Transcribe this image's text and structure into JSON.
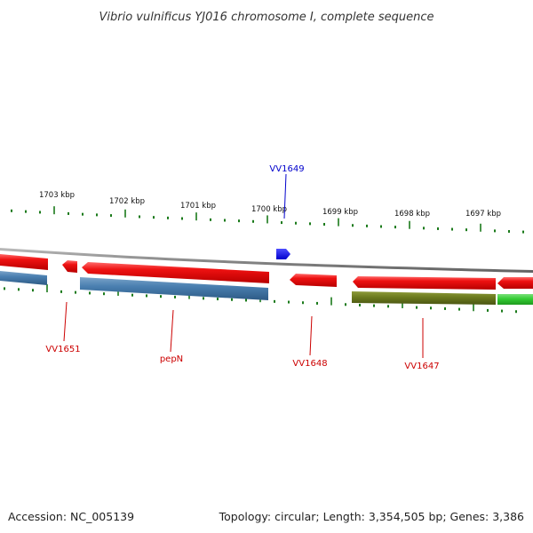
{
  "header": {
    "title": "Vibrio vulnificus YJ016 chromosome I, complete sequence"
  },
  "footer": {
    "accession": "Accession: NC_005139",
    "summary": "Topology: circular; Length: 3,354,505 bp; Genes: 3,386"
  },
  "ruler": {
    "labels": [
      "1703 kbp",
      "1702 kbp",
      "1701 kbp",
      "1700 kbp",
      "1699 kbp",
      "1698 kbp",
      "1697 kbp"
    ]
  },
  "colors": {
    "gene_red": "#ee1111",
    "cds_blue": "#4a7fb0",
    "cds_olive": "#6b7a1e",
    "cds_green": "#33cc33",
    "highlight_blue": "#0000ee",
    "tick_green": "#1a7a1a",
    "backbone": "#8a8a8a",
    "label_red": "#cc0000",
    "label_blue": "#0000cc"
  },
  "genes": {
    "highlighted": {
      "label": "VV1649",
      "strand": "+"
    },
    "labels": [
      "VV1651",
      "pepN",
      "VV1648",
      "VV1647"
    ]
  }
}
